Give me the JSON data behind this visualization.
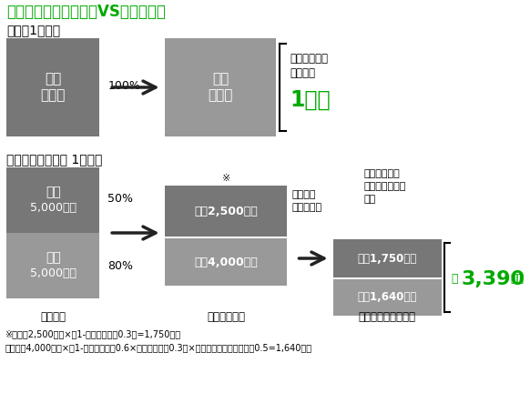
{
  "title": "相続税評価額「現金」VS「不動産」",
  "title_color": "#00aa00",
  "bg_color": "#ffffff",
  "section1_label": "現金（1億円）",
  "section2_label": "不動産（売買価格 1億円）",
  "box_gray_dark": "#777777",
  "box_gray_mid": "#999999",
  "box_gray_light": "#bbbbbb",
  "green": "#00aa00",
  "black": "#000000",
  "white": "#ffffff",
  "footnote1": "※建物　2,500万円×（1-借家権の割合0.3）=1,750万円",
  "footnote2": "　土地　4,000万円×（1-借家権の割合0.6×借家権の割合0.3）×事業用小規模住宅の特例0.5=1,640万円"
}
